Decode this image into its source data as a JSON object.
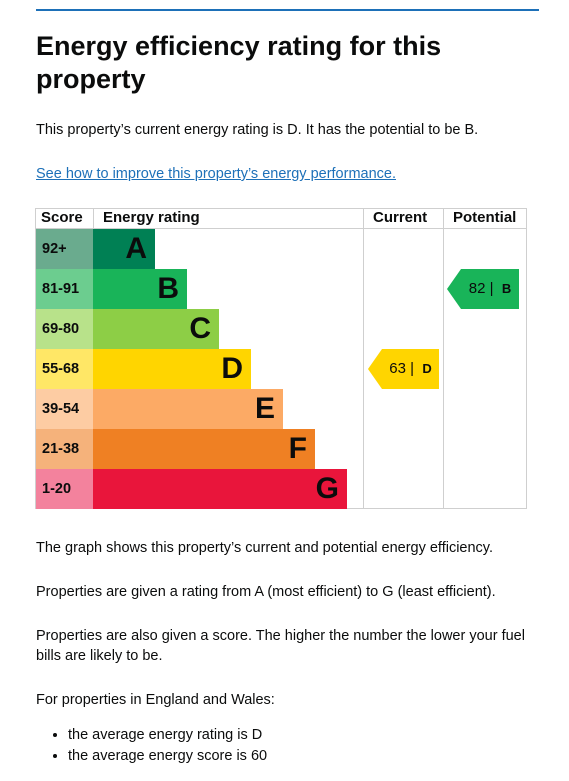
{
  "heading": "Energy efficiency rating for this property",
  "intro": "This property’s current energy rating is D. It has the potential to be B.",
  "improve_link": "See how to improve this property’s energy performance.",
  "chart_data": {
    "type": "table",
    "columns": [
      "Score",
      "Energy rating",
      "Current",
      "Potential"
    ],
    "bands": [
      {
        "score": "92+",
        "rating": "A",
        "color": "#008054"
      },
      {
        "score": "81-91",
        "rating": "B",
        "color": "#19b459"
      },
      {
        "score": "69-80",
        "rating": "C",
        "color": "#8dce46"
      },
      {
        "score": "55-68",
        "rating": "D",
        "color": "#ffd500"
      },
      {
        "score": "39-54",
        "rating": "E",
        "color": "#fcaa65"
      },
      {
        "score": "21-38",
        "rating": "F",
        "color": "#ef8023"
      },
      {
        "score": "1-20",
        "rating": "G",
        "color": "#e9153b"
      }
    ],
    "current": {
      "value": 63,
      "rating": "D",
      "color": "#ffd500"
    },
    "potential": {
      "value": 82,
      "rating": "B",
      "color": "#19b459"
    }
  },
  "paragraphs": [
    "The graph shows this property’s current and potential energy efficiency.",
    "Properties are given a rating from A (most efficient) to G (least efficient).",
    "Properties are also given a score. The higher the number the lower your fuel bills are likely to be.",
    "For properties in England and Wales:"
  ],
  "averages": [
    "the average energy rating is D",
    "the average energy score is 60"
  ]
}
